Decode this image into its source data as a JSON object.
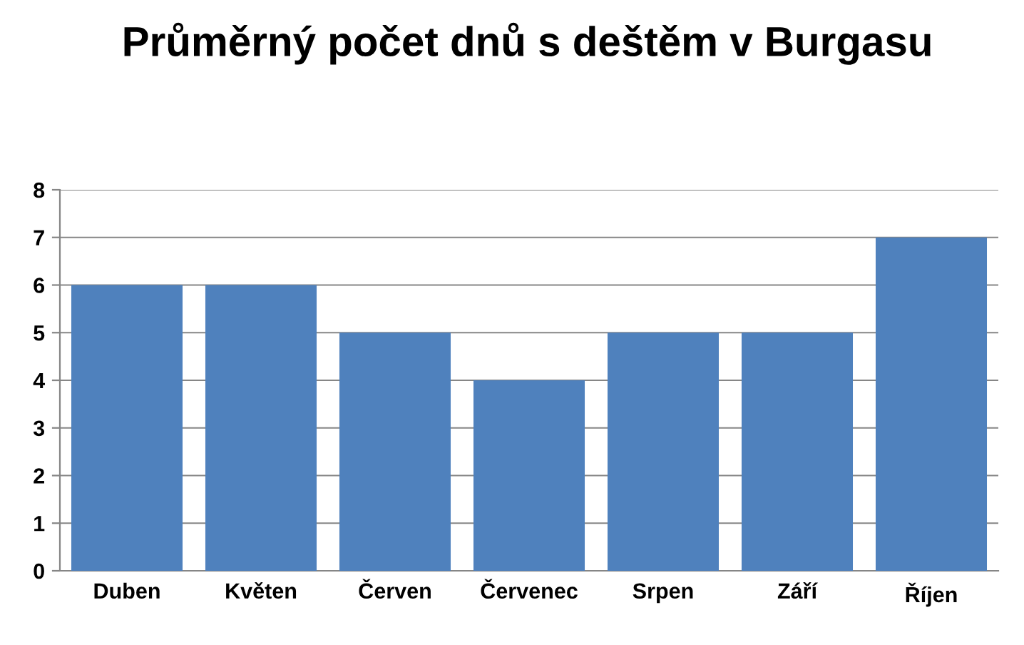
{
  "chart_data": {
    "type": "bar",
    "title": "Průměrný počet dnů s deštěm v Burgasu",
    "categories": [
      "Duben",
      "Květen",
      "Červen",
      "Červenec",
      "Srpen",
      "Září",
      "Říjen"
    ],
    "values": [
      6,
      6,
      5,
      4,
      5,
      5,
      7
    ],
    "color": "#4f81bd",
    "ylim": [
      0,
      8
    ],
    "yticks": [
      0,
      1,
      2,
      3,
      4,
      5,
      6,
      7,
      8
    ],
    "grid": "y",
    "legend": false
  }
}
